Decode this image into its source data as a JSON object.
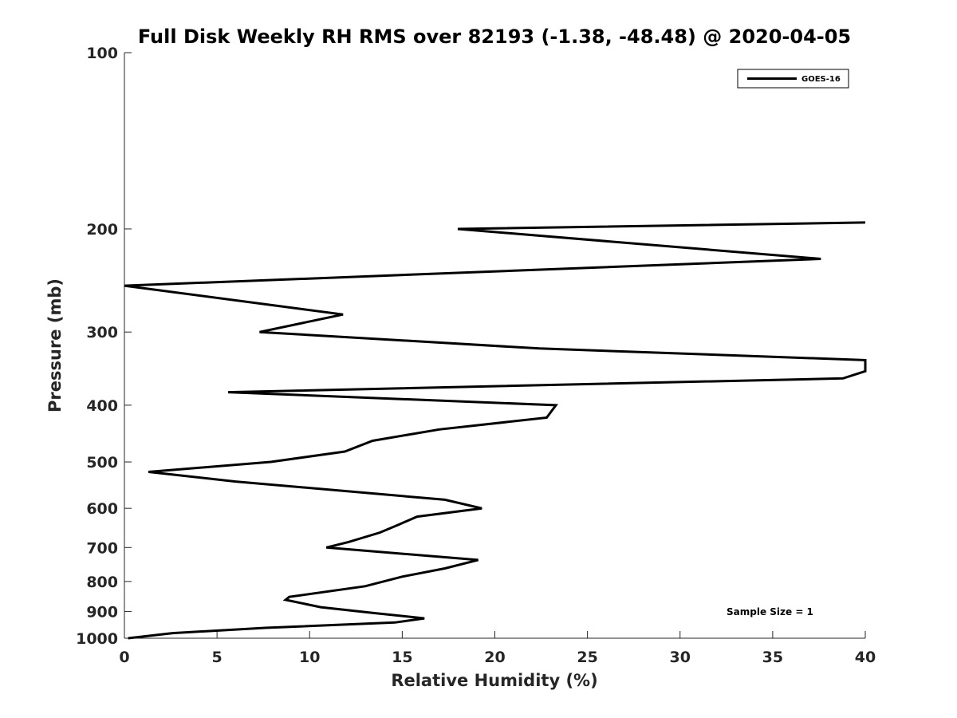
{
  "chart_data": {
    "type": "line",
    "title": "Full Disk Weekly RH RMS over 82193 (-1.38, -48.48) @ 2020-04-05",
    "xlabel": "Relative Humidity (%)",
    "ylabel": "Pressure (mb)",
    "xlim": [
      0,
      40
    ],
    "ylim": [
      100,
      1000
    ],
    "y_scale": "log",
    "y_reversed": true,
    "x_ticks": [
      0,
      5,
      10,
      15,
      20,
      25,
      30,
      35,
      40
    ],
    "y_ticks": [
      100,
      200,
      300,
      400,
      500,
      600,
      700,
      800,
      900,
      1000
    ],
    "grid": false,
    "legend_position": "top-right",
    "series": [
      {
        "name": "GOES-16",
        "color": "#000000",
        "points": [
          {
            "x": 0.2,
            "p": 1000
          },
          {
            "x": 2.6,
            "p": 980
          },
          {
            "x": 7.6,
            "p": 960
          },
          {
            "x": 14.6,
            "p": 940
          },
          {
            "x": 16.2,
            "p": 925
          },
          {
            "x": 13.4,
            "p": 905
          },
          {
            "x": 10.6,
            "p": 885
          },
          {
            "x": 8.7,
            "p": 860
          },
          {
            "x": 8.9,
            "p": 850
          },
          {
            "x": 13.0,
            "p": 815
          },
          {
            "x": 15.0,
            "p": 785
          },
          {
            "x": 17.3,
            "p": 760
          },
          {
            "x": 19.1,
            "p": 735
          },
          {
            "x": 10.9,
            "p": 700
          },
          {
            "x": 12.1,
            "p": 685
          },
          {
            "x": 13.8,
            "p": 660
          },
          {
            "x": 14.8,
            "p": 640
          },
          {
            "x": 15.8,
            "p": 620
          },
          {
            "x": 19.3,
            "p": 600
          },
          {
            "x": 17.3,
            "p": 580
          },
          {
            "x": 6.0,
            "p": 540
          },
          {
            "x": 1.3,
            "p": 520
          },
          {
            "x": 7.9,
            "p": 500
          },
          {
            "x": 11.9,
            "p": 480
          },
          {
            "x": 13.4,
            "p": 460
          },
          {
            "x": 17.0,
            "p": 440
          },
          {
            "x": 22.8,
            "p": 420
          },
          {
            "x": 23.3,
            "p": 400
          },
          {
            "x": 5.6,
            "p": 380
          },
          {
            "x": 38.8,
            "p": 360
          },
          {
            "x": 40.0,
            "p": 350
          },
          {
            "x": 40.0,
            "p": 335
          },
          {
            "x": 22.4,
            "p": 320
          },
          {
            "x": 7.3,
            "p": 300
          },
          {
            "x": 11.8,
            "p": 280
          },
          {
            "x": 0.0,
            "p": 250
          },
          {
            "x": 37.6,
            "p": 225
          },
          {
            "x": 18.0,
            "p": 200
          },
          {
            "x": 40.0,
            "p": 195
          }
        ]
      }
    ],
    "annotations": [
      {
        "text": "Sample Size = 1"
      }
    ]
  }
}
